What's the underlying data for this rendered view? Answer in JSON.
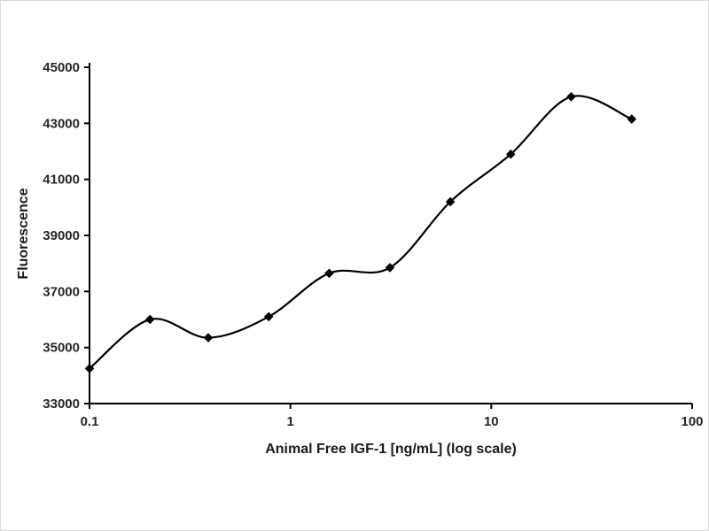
{
  "chart_data": {
    "type": "line",
    "title": "",
    "xlabel": "Animal Free IGF-1 [ng/mL] (log scale)",
    "ylabel": "Fluorescence",
    "x_scale": "log",
    "xlim": [
      0.1,
      100
    ],
    "ylim": [
      33000,
      45000
    ],
    "x_ticks": [
      0.1,
      1,
      10,
      100
    ],
    "x_tick_labels": [
      "0.1",
      "1",
      "10",
      "100"
    ],
    "y_ticks": [
      33000,
      35000,
      37000,
      39000,
      41000,
      43000,
      45000
    ],
    "y_tick_labels": [
      "33000",
      "35000",
      "37000",
      "39000",
      "41000",
      "43000",
      "45000"
    ],
    "grid": false,
    "legend": "none",
    "series": [
      {
        "x": [
          0.1,
          0.2,
          0.39,
          0.78,
          1.56,
          3.13,
          6.25,
          12.5,
          25,
          50
        ],
        "y": [
          34250,
          36000,
          35350,
          36100,
          37650,
          37850,
          40200,
          41900,
          43950,
          43150
        ],
        "marker": "diamond",
        "line_style": "smooth",
        "color": "#000000"
      }
    ]
  },
  "styles": {
    "axis_color": "#000000",
    "tick_label_color": "#262626",
    "title_color": "#1a1a1a",
    "background": "#ffffff"
  }
}
